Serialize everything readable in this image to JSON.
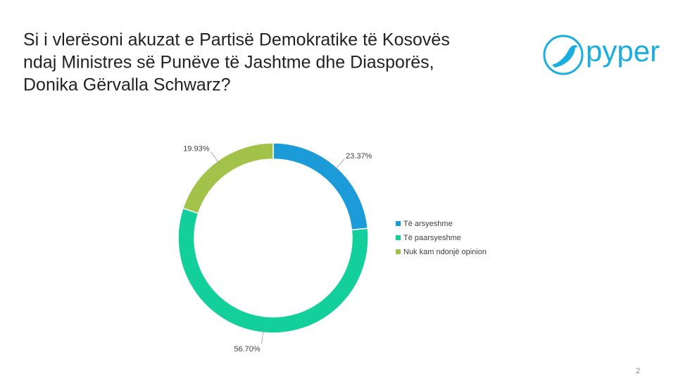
{
  "header": {
    "title_lines": [
      "Si i vlerësoni akuzat e Partisë Demokratike të Kosovës",
      "ndaj Ministres së Punëve të Jashtme dhe Diasporës,",
      "Donika Gërvalla Schwarz?"
    ],
    "logo": "pyper"
  },
  "chart_data": {
    "type": "donut",
    "categories": [
      "Të arsyeshme",
      "Të paarsyeshme",
      "Nuk kam ndonjë opinion"
    ],
    "values": [
      23.37,
      56.7,
      19.93
    ],
    "value_labels": [
      "23.37%",
      "56.70%",
      "19.93%"
    ],
    "colors": [
      "#1b9bd7",
      "#13cf9b",
      "#a3c24a"
    ],
    "legend": "right"
  },
  "footer": {
    "page_number": "2"
  }
}
